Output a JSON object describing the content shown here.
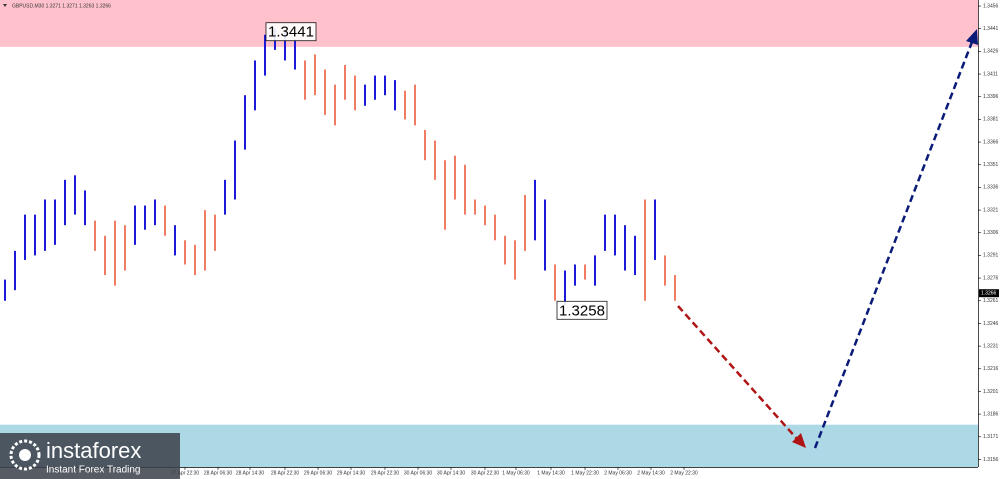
{
  "chart_data": {
    "type": "range-bar",
    "title": "GBPUSD,M30  1.3271 1.3271 1.3263 1.3266",
    "ylim": [
      1.3151,
      1.346
    ],
    "yticks": [
      1.3456,
      1.3441,
      1.3426,
      1.3411,
      1.3396,
      1.3381,
      1.3366,
      1.3351,
      1.3336,
      1.3321,
      1.3306,
      1.3291,
      1.3276,
      1.3261,
      1.3246,
      1.3231,
      1.3216,
      1.3201,
      1.3186,
      1.3171,
      1.3156
    ],
    "colors": {
      "up": "#1a1ad8",
      "down": "#f07d62"
    },
    "high": [
      1.3275,
      1.3294,
      1.3318,
      1.3318,
      1.3328,
      1.3328,
      1.3341,
      1.3344,
      1.3334,
      1.3314,
      1.3304,
      1.3314,
      1.3311,
      1.3324,
      1.3324,
      1.3328,
      1.3324,
      1.3311,
      1.3301,
      1.3298,
      1.3321,
      1.3318,
      1.3341,
      1.3367,
      1.3397,
      1.342,
      1.3437,
      1.3441,
      1.344,
      1.3434,
      1.342,
      1.3424,
      1.3414,
      1.3404,
      1.3417,
      1.341,
      1.3404,
      1.341,
      1.341,
      1.3407,
      1.34,
      1.3404,
      1.3374,
      1.3367,
      1.3354,
      1.3357,
      1.3351,
      1.3328,
      1.3324,
      1.3318,
      1.3304,
      1.3301,
      1.3331,
      1.3341,
      1.3328,
      1.3285,
      1.3281,
      1.3285,
      1.3285,
      1.3291,
      1.3318,
      1.3318,
      1.3311,
      1.3304,
      1.3328,
      1.3328,
      1.3291,
      1.3278
    ],
    "low": [
      1.3261,
      1.3268,
      1.3288,
      1.3291,
      1.3294,
      1.3298,
      1.3311,
      1.3318,
      1.3311,
      1.3294,
      1.3278,
      1.3271,
      1.3281,
      1.3298,
      1.3308,
      1.3311,
      1.3304,
      1.3291,
      1.3285,
      1.3278,
      1.3281,
      1.3294,
      1.3318,
      1.3328,
      1.3361,
      1.3387,
      1.341,
      1.3427,
      1.342,
      1.3414,
      1.3394,
      1.3397,
      1.3384,
      1.3377,
      1.3394,
      1.3387,
      1.339,
      1.3394,
      1.3397,
      1.3387,
      1.3381,
      1.3377,
      1.3354,
      1.3341,
      1.3308,
      1.3328,
      1.3318,
      1.3318,
      1.3311,
      1.3301,
      1.3285,
      1.3275,
      1.3294,
      1.3301,
      1.3281,
      1.3261,
      1.3258,
      1.3271,
      1.3275,
      1.3271,
      1.3294,
      1.3291,
      1.3281,
      1.3278,
      1.3261,
      1.3288,
      1.3271,
      1.3261
    ],
    "direction": [
      "up",
      "up",
      "up",
      "up",
      "up",
      "up",
      "up",
      "up",
      "up",
      "down",
      "down",
      "down",
      "down",
      "up",
      "up",
      "up",
      "down",
      "up",
      "down",
      "down",
      "down",
      "down",
      "up",
      "up",
      "up",
      "up",
      "up",
      "up",
      "up",
      "up",
      "down",
      "down",
      "down",
      "down",
      "down",
      "down",
      "up",
      "up",
      "up",
      "up",
      "down",
      "down",
      "down",
      "down",
      "down",
      "down",
      "down",
      "down",
      "down",
      "down",
      "down",
      "down",
      "down",
      "up",
      "up",
      "down",
      "up",
      "up",
      "down",
      "up",
      "up",
      "up",
      "up",
      "up",
      "down",
      "up",
      "down",
      "down"
    ],
    "x_labels": [
      {
        "index": 18,
        "label": "27 Apr 22:30"
      },
      {
        "index": 21.3,
        "label": "28 Apr 06:30"
      },
      {
        "index": 24.5,
        "label": "28 Apr 14:30"
      },
      {
        "index": 28,
        "label": "28 Apr 22:30"
      },
      {
        "index": 31.3,
        "label": "29 Apr 06:30"
      },
      {
        "index": 34.6,
        "label": "29 Apr 14:30"
      },
      {
        "index": 38,
        "label": "29 Apr 22:30"
      },
      {
        "index": 41.3,
        "label": "30 Apr 06:30"
      },
      {
        "index": 44.6,
        "label": "30 Apr 14:30"
      },
      {
        "index": 48,
        "label": "30 Apr 22:30"
      },
      {
        "index": 51.1,
        "label": "1 May 06:30"
      },
      {
        "index": 54.6,
        "label": "1 May 14:30"
      },
      {
        "index": 58,
        "label": "1 May 22:30"
      },
      {
        "index": 61.3,
        "label": "2 May 06:30"
      },
      {
        "index": 64.6,
        "label": "2 May 14:30"
      },
      {
        "index": 67.9,
        "label": "2 May 22:30"
      }
    ],
    "zones": [
      {
        "from": 1.3429,
        "to": 1.346,
        "color": "#ffc2cc"
      },
      {
        "from": 1.3151,
        "to": 1.3179,
        "color": "#add8e6"
      }
    ],
    "annotations": [
      {
        "label": "1.3441",
        "value": 1.3441,
        "index": 28.5
      },
      {
        "label": "1.3258",
        "value": 1.3258,
        "index": 57.6
      }
    ],
    "last_price": {
      "label": "1.3266",
      "value": 1.3266
    }
  },
  "logo": {
    "brand": "instaforex",
    "tagline": "Instant Forex Trading"
  }
}
